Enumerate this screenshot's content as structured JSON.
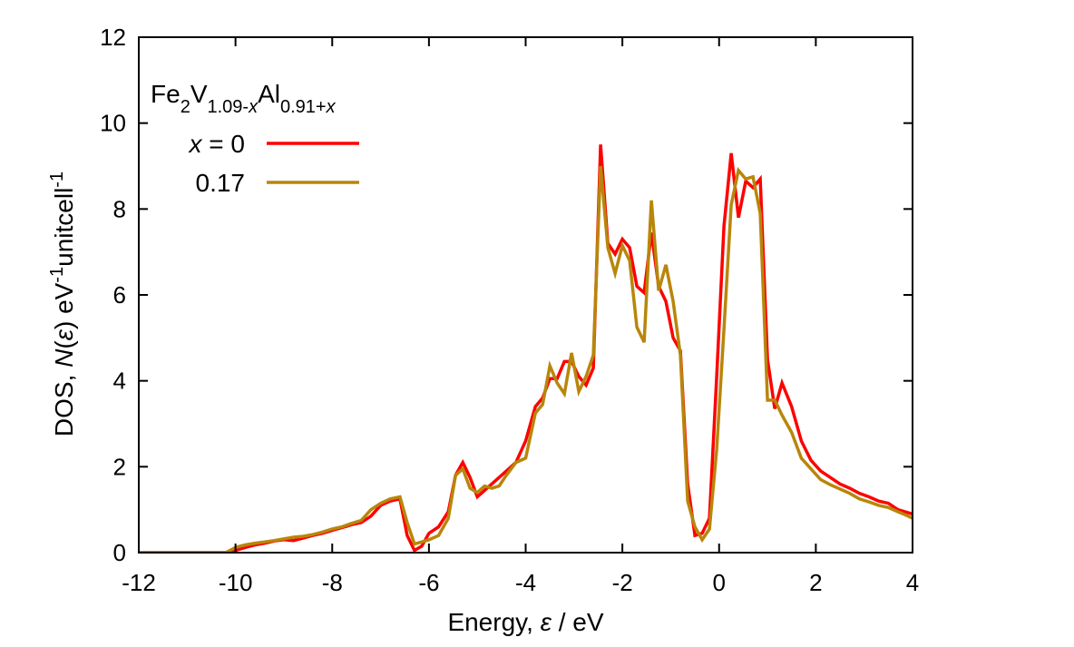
{
  "chart_data": {
    "type": "line",
    "title": "",
    "annotation": {
      "parts": [
        {
          "text": "Fe",
          "shift": "base",
          "italic": false
        },
        {
          "text": "2",
          "shift": "sub",
          "italic": false
        },
        {
          "text": "V",
          "shift": "base",
          "italic": false
        },
        {
          "text": "1.09-",
          "shift": "sub",
          "italic": false
        },
        {
          "text": "x",
          "shift": "sub",
          "italic": true
        },
        {
          "text": "Al",
          "shift": "base",
          "italic": false
        },
        {
          "text": "0.91+",
          "shift": "sub",
          "italic": false
        },
        {
          "text": "x",
          "shift": "sub",
          "italic": true
        }
      ]
    },
    "xlabel": {
      "parts": [
        {
          "text": "Energy, ",
          "shift": "base",
          "italic": false
        },
        {
          "text": "ε",
          "shift": "base",
          "italic": true
        },
        {
          "text": " / eV",
          "shift": "base",
          "italic": false
        }
      ]
    },
    "ylabel": {
      "parts": [
        {
          "text": "DOS, ",
          "shift": "base",
          "italic": false
        },
        {
          "text": "N",
          "shift": "base",
          "italic": true
        },
        {
          "text": "(",
          "shift": "base",
          "italic": false
        },
        {
          "text": "ε",
          "shift": "base",
          "italic": true
        },
        {
          "text": ") eV",
          "shift": "base",
          "italic": false
        },
        {
          "text": "-1",
          "shift": "sup",
          "italic": false
        },
        {
          "text": "unitcell",
          "shift": "base",
          "italic": false
        },
        {
          "text": "-1",
          "shift": "sup",
          "italic": false
        }
      ]
    },
    "xlim": [
      -12,
      4
    ],
    "ylim": [
      0,
      12
    ],
    "xticks": [
      -12,
      -10,
      -8,
      -6,
      -4,
      -2,
      0,
      2,
      4
    ],
    "yticks": [
      0,
      2,
      4,
      6,
      8,
      10,
      12
    ],
    "grid": false,
    "legend_position": "top-left",
    "series": [
      {
        "name": "x = 0",
        "label_parts": [
          {
            "text": "x",
            "italic": true
          },
          {
            "text": " = 0",
            "italic": false
          }
        ],
        "color": "#ff0000",
        "x": [
          -12,
          -11.8,
          -11.6,
          -11.4,
          -11.2,
          -11.0,
          -10.8,
          -10.6,
          -10.4,
          -10.2,
          -10.0,
          -9.8,
          -9.6,
          -9.4,
          -9.2,
          -9.0,
          -8.8,
          -8.6,
          -8.4,
          -8.2,
          -8.0,
          -7.8,
          -7.6,
          -7.4,
          -7.2,
          -7.0,
          -6.8,
          -6.6,
          -6.45,
          -6.3,
          -6.15,
          -6.0,
          -5.8,
          -5.6,
          -5.45,
          -5.3,
          -5.15,
          -5.0,
          -4.85,
          -4.7,
          -4.55,
          -4.4,
          -4.2,
          -4.0,
          -3.8,
          -3.65,
          -3.5,
          -3.35,
          -3.2,
          -3.05,
          -2.9,
          -2.75,
          -2.6,
          -2.45,
          -2.3,
          -2.15,
          -2.0,
          -1.85,
          -1.7,
          -1.55,
          -1.4,
          -1.25,
          -1.1,
          -0.95,
          -0.8,
          -0.65,
          -0.5,
          -0.35,
          -0.2,
          -0.05,
          0.1,
          0.25,
          0.4,
          0.55,
          0.7,
          0.85,
          1.0,
          1.15,
          1.3,
          1.5,
          1.7,
          1.9,
          2.1,
          2.3,
          2.5,
          2.7,
          2.9,
          3.1,
          3.3,
          3.5,
          3.7,
          3.85,
          4.0
        ],
        "y": [
          0,
          0,
          0,
          0,
          0,
          0,
          0,
          0,
          0,
          0,
          0.05,
          0.12,
          0.18,
          0.22,
          0.27,
          0.3,
          0.28,
          0.34,
          0.4,
          0.45,
          0.52,
          0.58,
          0.65,
          0.7,
          0.85,
          1.1,
          1.2,
          1.25,
          0.4,
          0.05,
          0.15,
          0.45,
          0.6,
          0.95,
          1.8,
          2.1,
          1.75,
          1.3,
          1.45,
          1.6,
          1.75,
          1.9,
          2.1,
          2.6,
          3.4,
          3.6,
          4.05,
          4.05,
          4.45,
          4.45,
          4.1,
          3.9,
          4.3,
          9.5,
          7.2,
          6.95,
          7.3,
          7.1,
          6.2,
          6.05,
          7.45,
          6.2,
          5.85,
          5.0,
          4.7,
          1.6,
          0.4,
          0.45,
          0.8,
          4.1,
          7.6,
          9.3,
          7.8,
          8.65,
          8.5,
          8.7,
          4.5,
          3.35,
          3.95,
          3.4,
          2.6,
          2.15,
          1.9,
          1.75,
          1.6,
          1.5,
          1.38,
          1.3,
          1.2,
          1.15,
          1.0,
          0.95,
          0.9
        ]
      },
      {
        "name": "0.17",
        "label_parts": [
          {
            "text": "0.17",
            "italic": false
          }
        ],
        "color": "#b8860b",
        "x": [
          -12,
          -11.8,
          -11.6,
          -11.4,
          -11.2,
          -11.0,
          -10.8,
          -10.6,
          -10.4,
          -10.2,
          -10.0,
          -9.8,
          -9.6,
          -9.4,
          -9.2,
          -9.0,
          -8.8,
          -8.6,
          -8.4,
          -8.2,
          -8.0,
          -7.8,
          -7.6,
          -7.4,
          -7.2,
          -7.0,
          -6.8,
          -6.6,
          -6.45,
          -6.3,
          -6.15,
          -6.0,
          -5.8,
          -5.6,
          -5.45,
          -5.3,
          -5.15,
          -5.0,
          -4.85,
          -4.7,
          -4.55,
          -4.4,
          -4.2,
          -4.0,
          -3.8,
          -3.65,
          -3.5,
          -3.35,
          -3.2,
          -3.05,
          -2.9,
          -2.75,
          -2.6,
          -2.45,
          -2.3,
          -2.15,
          -2.0,
          -1.85,
          -1.7,
          -1.55,
          -1.4,
          -1.25,
          -1.1,
          -0.95,
          -0.8,
          -0.65,
          -0.5,
          -0.35,
          -0.2,
          -0.05,
          0.1,
          0.25,
          0.4,
          0.55,
          0.7,
          0.85,
          1.0,
          1.15,
          1.3,
          1.5,
          1.7,
          1.9,
          2.1,
          2.3,
          2.5,
          2.7,
          2.9,
          3.1,
          3.3,
          3.5,
          3.7,
          3.85,
          4.0
        ],
        "y": [
          0,
          0,
          0,
          0,
          0,
          0,
          0,
          0,
          0,
          0,
          0.12,
          0.18,
          0.22,
          0.25,
          0.28,
          0.32,
          0.36,
          0.38,
          0.42,
          0.48,
          0.55,
          0.6,
          0.68,
          0.75,
          1.0,
          1.15,
          1.25,
          1.3,
          0.7,
          0.2,
          0.25,
          0.3,
          0.4,
          0.8,
          1.8,
          1.95,
          1.5,
          1.4,
          1.55,
          1.5,
          1.55,
          1.8,
          2.1,
          2.2,
          3.25,
          3.45,
          4.35,
          3.95,
          3.7,
          4.65,
          3.75,
          4.1,
          4.6,
          9.0,
          7.1,
          6.5,
          7.15,
          6.8,
          5.25,
          4.9,
          8.2,
          6.1,
          6.7,
          5.85,
          4.6,
          1.2,
          0.6,
          0.3,
          0.55,
          2.4,
          5.2,
          8.1,
          8.9,
          8.7,
          8.75,
          7.9,
          3.55,
          3.55,
          3.2,
          2.8,
          2.2,
          1.95,
          1.7,
          1.58,
          1.48,
          1.38,
          1.25,
          1.18,
          1.1,
          1.05,
          0.95,
          0.88,
          0.8
        ]
      }
    ]
  }
}
